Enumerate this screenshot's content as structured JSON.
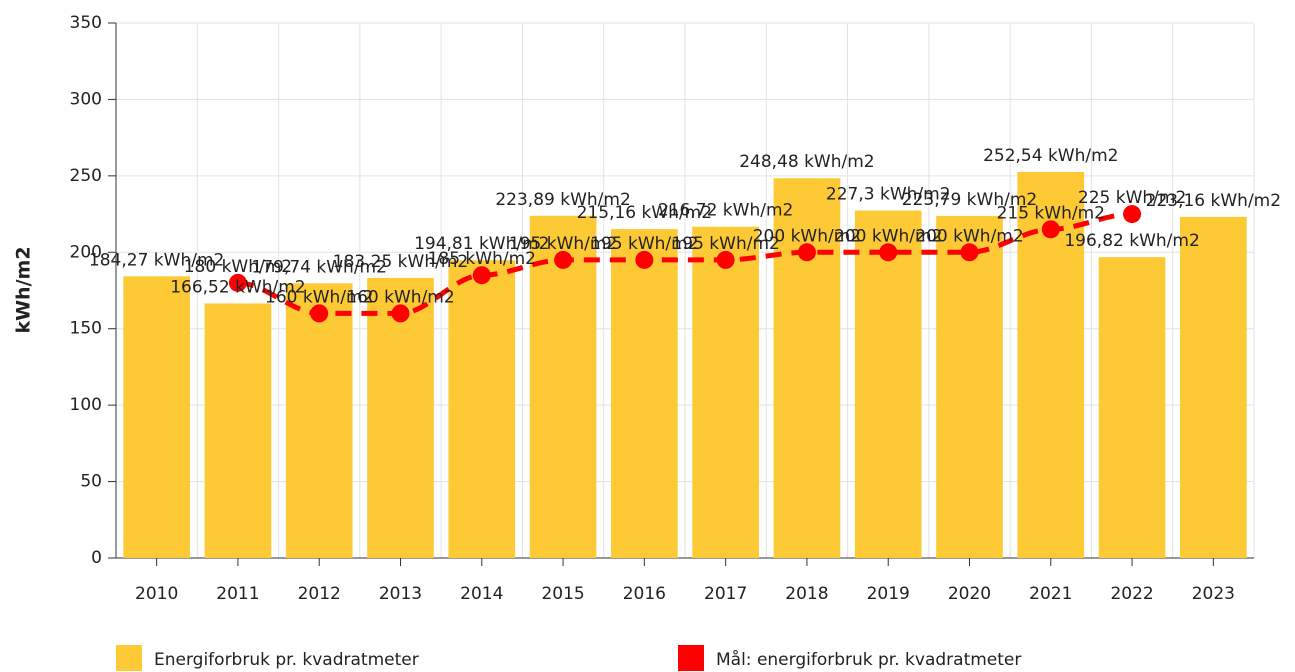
{
  "chart_data": {
    "type": "bar",
    "y_label": "kWh/m2",
    "categories": [
      "2010",
      "2011",
      "2012",
      "2013",
      "2014",
      "2015",
      "2016",
      "2017",
      "2018",
      "2019",
      "2020",
      "2021",
      "2022",
      "2023"
    ],
    "series": [
      {
        "name": "Energiforbruk pr. kvadratmeter",
        "type": "bar",
        "color": "#fdc934",
        "values": [
          184.27,
          166.52,
          179.74,
          183.25,
          194.81,
          223.89,
          215.16,
          216.72,
          248.48,
          227.3,
          223.79,
          252.54,
          196.82,
          223.16
        ],
        "value_labels": [
          "184,27 kWh/m2",
          "166,52 kWh/m2",
          "179,74 kWh/m2",
          "183,25 kWh/m2",
          "194,81 kWh/m2",
          "223,89 kWh/m2",
          "215,16 kWh/m2",
          "216,72 kWh/m2",
          "248,48 kWh/m2",
          "227,3 kWh/m2",
          "223,79 kWh/m2",
          "252,54 kWh/m2",
          "196,82 kWh/m2",
          "223,16 kWh/m2"
        ]
      },
      {
        "name": "Mål: energiforbruk pr. kvadratmeter",
        "type": "line",
        "color": "#ff0000",
        "values": [
          null,
          180,
          160,
          160,
          185,
          195,
          195,
          195,
          200,
          200,
          200,
          215,
          225,
          null
        ],
        "value_labels": [
          null,
          "180 kWh/m2",
          "160 kWh/m2",
          "160 kWh/m2",
          "185 kWh/m2",
          "195 kWh/m2",
          "195 kWh/m2",
          "195 kWh/m2",
          "200 kWh/m2",
          "200 kWh/m2",
          "200 kWh/m2",
          "215 kWh/m2",
          "225 kWh/m2",
          null
        ]
      }
    ],
    "ylim": [
      0,
      350
    ],
    "yticks": [
      0,
      50,
      100,
      150,
      200,
      250,
      300,
      350
    ],
    "grid": true
  }
}
